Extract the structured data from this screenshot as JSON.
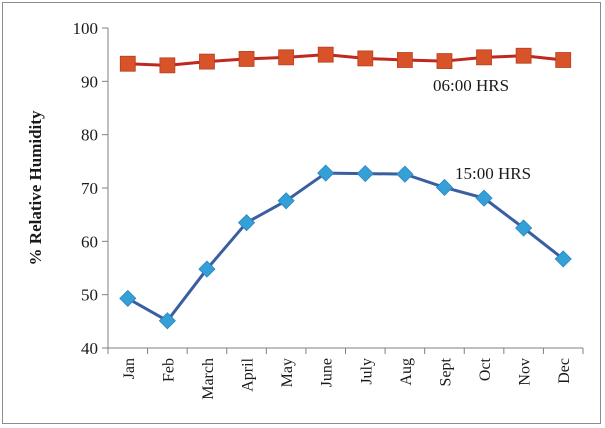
{
  "chart_data": {
    "type": "line",
    "title": "",
    "xlabel": "",
    "ylabel": "% Relative Humidity",
    "ylim": [
      40,
      100
    ],
    "yticks": [
      40,
      50,
      60,
      70,
      80,
      90,
      100
    ],
    "grid": false,
    "categories": [
      "Jan",
      "Feb",
      "March",
      "April",
      "May",
      "June",
      "July",
      "Aug",
      "Sept",
      "Oct",
      "Nov",
      "Dec"
    ],
    "series": [
      {
        "name": "06:00 HRS",
        "marker": "square",
        "color": "#d8522a",
        "line_color": "#c0281e",
        "values": [
          93.3,
          93.0,
          93.7,
          94.2,
          94.5,
          95.0,
          94.3,
          94.0,
          93.8,
          94.5,
          94.8,
          94.0
        ]
      },
      {
        "name": "15:00 HRS",
        "marker": "diamond",
        "color": "#35a0d8",
        "line_color": "#3a5fa0",
        "values": [
          49.3,
          45.1,
          54.8,
          63.5,
          67.6,
          72.8,
          72.7,
          72.6,
          70.1,
          68.1,
          62.5,
          56.7
        ]
      }
    ]
  }
}
